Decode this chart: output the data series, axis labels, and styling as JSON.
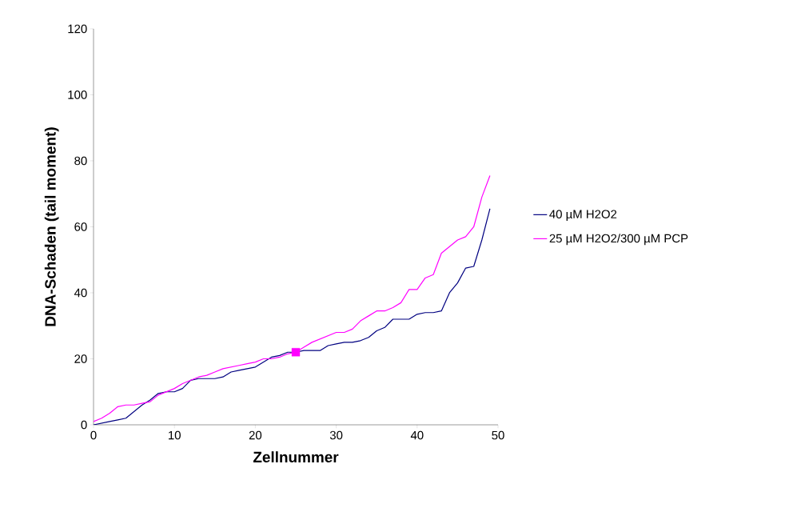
{
  "chart_data": {
    "type": "line",
    "xlabel": "Zellnummer",
    "ylabel": "DNA-Schaden (tail moment)",
    "x": [
      0,
      1,
      2,
      3,
      4,
      5,
      6,
      7,
      8,
      9,
      10,
      11,
      12,
      13,
      14,
      15,
      16,
      17,
      18,
      19,
      20,
      21,
      22,
      23,
      24,
      25,
      26,
      27,
      28,
      29,
      30,
      31,
      32,
      33,
      34,
      35,
      36,
      37,
      38,
      39,
      40,
      41,
      42,
      43,
      44,
      45,
      46,
      47,
      48,
      49
    ],
    "series": [
      {
        "name": "40 µM H2O2",
        "color": "#000080",
        "values": [
          0,
          0.5,
          1,
          1.5,
          2,
          4,
          6,
          7.5,
          9.5,
          10,
          10,
          11,
          13.5,
          14,
          14,
          14,
          14.5,
          16,
          16.5,
          17,
          17.5,
          19,
          20.5,
          21,
          22,
          22,
          22.5,
          22.5,
          22.5,
          24,
          24.5,
          25,
          25,
          25.5,
          26.5,
          28.5,
          29.5,
          32,
          32,
          32,
          33.5,
          34,
          34,
          34.5,
          40,
          43,
          47.5,
          48,
          56,
          65.5
        ]
      },
      {
        "name": "25 µM H2O2/300 µM PCP",
        "color": "#ff00ff",
        "values": [
          1,
          2,
          3.5,
          5.5,
          6,
          6,
          6.5,
          7,
          9,
          10,
          11,
          12.5,
          13.5,
          14.5,
          15,
          16,
          17,
          17.5,
          18,
          18.5,
          19,
          20,
          20,
          20.5,
          21.5,
          22,
          23.5,
          25,
          26,
          27,
          28,
          28,
          29,
          31.5,
          33,
          34.5,
          34.5,
          35.5,
          37,
          41,
          41,
          44.5,
          45.5,
          52,
          54,
          56,
          57,
          60,
          69,
          75.5
        ]
      },
      {
        "type": "scatter",
        "marker": "square",
        "color": "#ff00ff",
        "x": [
          25
        ],
        "values": [
          22
        ]
      }
    ],
    "xlim": [
      0,
      50
    ],
    "xticks": [
      0,
      10,
      20,
      30,
      40,
      50
    ],
    "ylim": [
      0,
      120
    ],
    "yticks": [
      0,
      20,
      40,
      60,
      80,
      100,
      120
    ],
    "grid": false,
    "legend": "right",
    "marker": "none",
    "line_style": "solid"
  }
}
